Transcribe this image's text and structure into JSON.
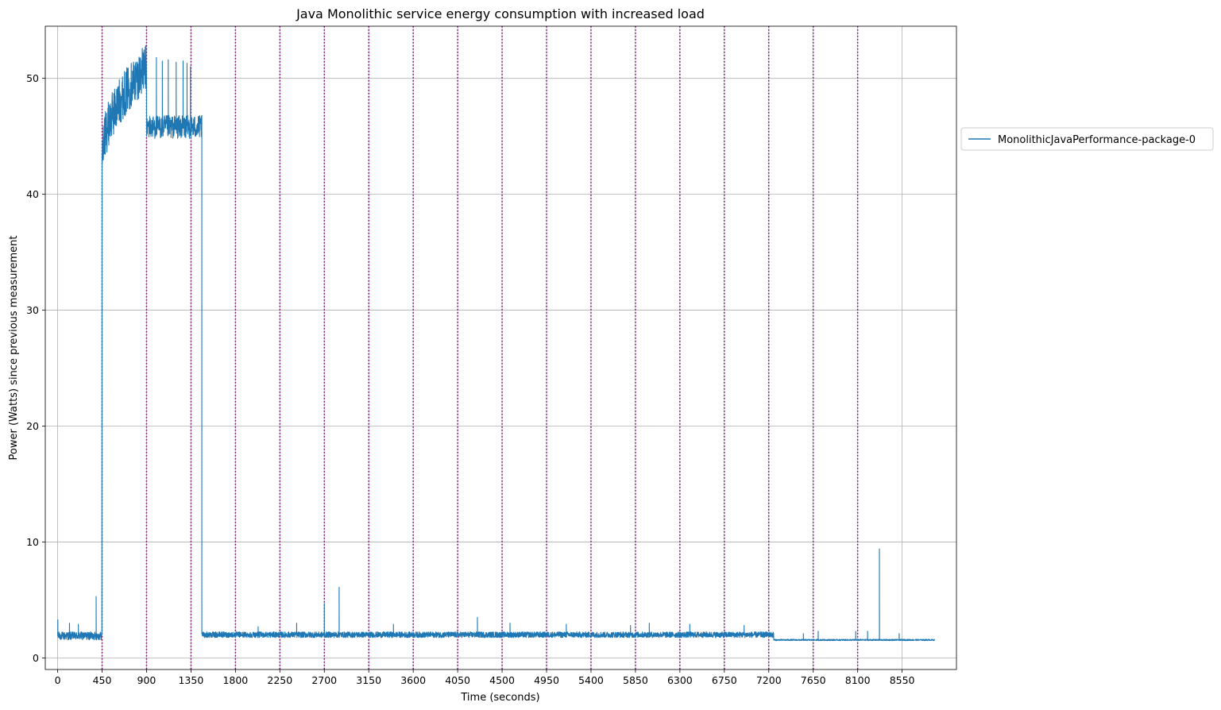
{
  "chart_data": {
    "type": "line",
    "title": "Java Monolithic service energy consumption with increased load",
    "xlabel": "Time (seconds)",
    "ylabel": "Power (Watts) since previous measurement",
    "xlim": [
      -125,
      9100
    ],
    "ylim": [
      -1,
      54.5
    ],
    "xticks": [
      0,
      450,
      900,
      1350,
      1800,
      2250,
      2700,
      3150,
      3600,
      4050,
      4500,
      4950,
      5400,
      5850,
      6300,
      6750,
      7200,
      7650,
      8100,
      8550
    ],
    "yticks": [
      0,
      10,
      20,
      30,
      40,
      50
    ],
    "grid": true,
    "legend_position": "outside-right",
    "vlines": [
      450,
      900,
      1350,
      1800,
      2250,
      2700,
      3150,
      3600,
      4050,
      4500,
      4950,
      5400,
      5850,
      6300,
      6750,
      7200,
      7650,
      8100
    ],
    "vline_color": "#800080",
    "series": [
      {
        "name": "MonolithicJavaPerformance-package-0",
        "color": "#1f77b4",
        "segments": [
          {
            "x_start": 0,
            "x_end": 450,
            "base": 1.9,
            "noise": 0.35
          },
          {
            "x_start": 450,
            "x_end": 900,
            "start": 43.0,
            "end": 51.0,
            "noise": 2.0
          },
          {
            "x_start": 900,
            "x_end": 1460,
            "base": 45.8,
            "noise": 1.0
          },
          {
            "x_start": 1460,
            "x_end": 7250,
            "base": 2.0,
            "noise": 0.25
          },
          {
            "x_start": 7250,
            "x_end": 8880,
            "base": 1.55,
            "noise": 0.06
          }
        ],
        "spikes": [
          {
            "x": 2,
            "y": 3.3
          },
          {
            "x": 120,
            "y": 3.0
          },
          {
            "x": 210,
            "y": 2.9
          },
          {
            "x": 390,
            "y": 5.3
          },
          {
            "x": 455,
            "y": 43.5
          },
          {
            "x": 1000,
            "y": 51.8
          },
          {
            "x": 1060,
            "y": 51.5
          },
          {
            "x": 1120,
            "y": 51.6
          },
          {
            "x": 1200,
            "y": 51.4
          },
          {
            "x": 1270,
            "y": 51.5
          },
          {
            "x": 1310,
            "y": 51.3
          },
          {
            "x": 1345,
            "y": 51.0
          },
          {
            "x": 1450,
            "y": 46.5
          },
          {
            "x": 2030,
            "y": 2.7
          },
          {
            "x": 2420,
            "y": 3.0
          },
          {
            "x": 2700,
            "y": 4.7
          },
          {
            "x": 2850,
            "y": 6.1
          },
          {
            "x": 3400,
            "y": 2.9
          },
          {
            "x": 4250,
            "y": 3.5
          },
          {
            "x": 4580,
            "y": 3.0
          },
          {
            "x": 5150,
            "y": 2.9
          },
          {
            "x": 5800,
            "y": 2.8
          },
          {
            "x": 5990,
            "y": 3.0
          },
          {
            "x": 6400,
            "y": 2.9
          },
          {
            "x": 6950,
            "y": 2.8
          },
          {
            "x": 7550,
            "y": 2.1
          },
          {
            "x": 7700,
            "y": 2.3
          },
          {
            "x": 8080,
            "y": 2.3
          },
          {
            "x": 8200,
            "y": 2.3
          },
          {
            "x": 8320,
            "y": 9.4
          },
          {
            "x": 8520,
            "y": 2.1
          }
        ]
      }
    ]
  }
}
